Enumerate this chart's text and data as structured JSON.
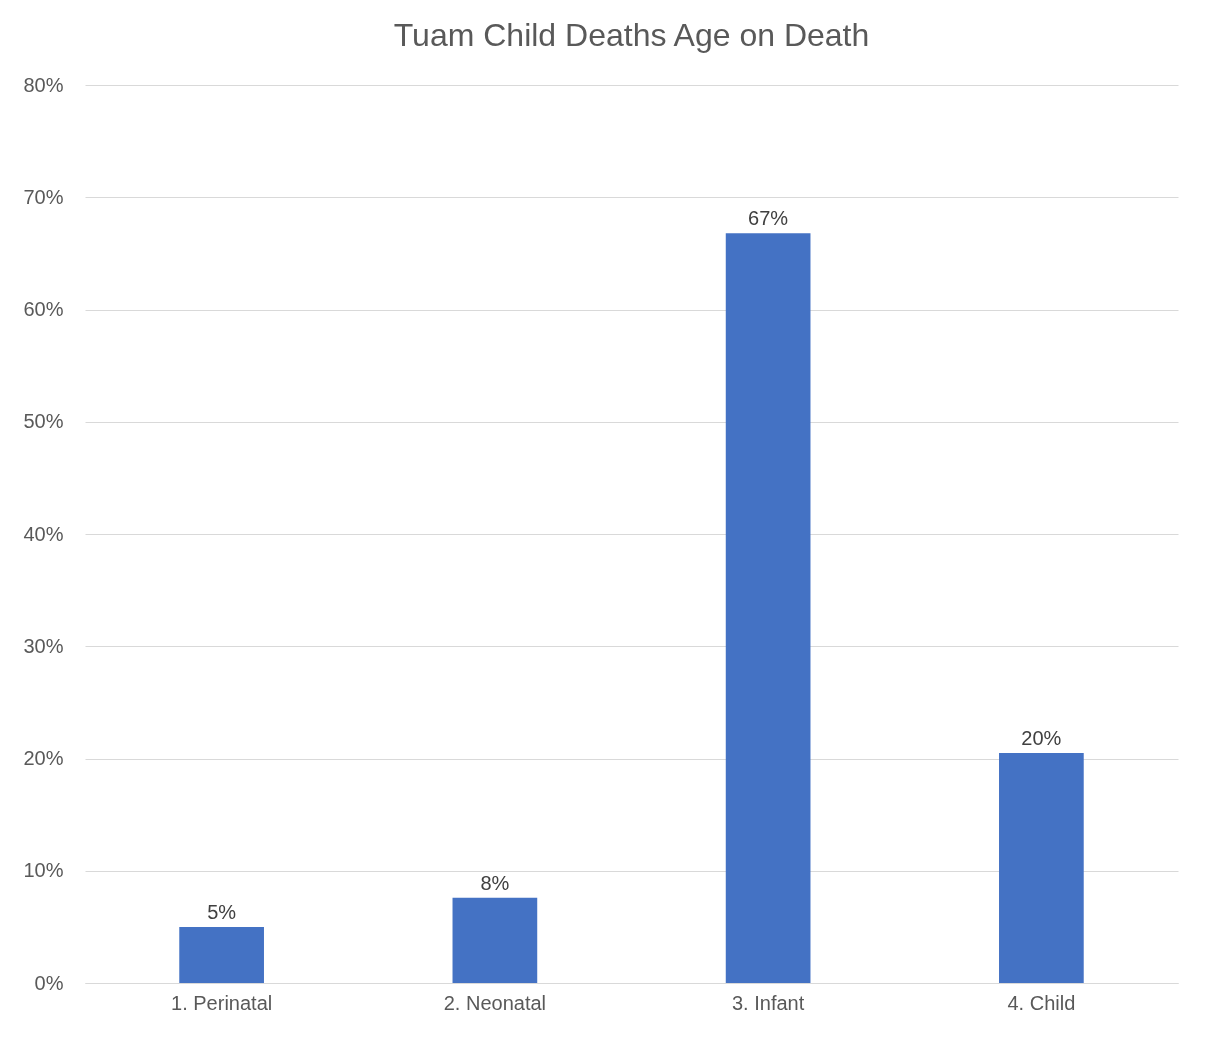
{
  "chart_data": {
    "type": "bar",
    "title": "Tuam Child Deaths Age on Death",
    "categories": [
      "1. Perinatal",
      "2. Neonatal",
      "3. Infant",
      "4. Child"
    ],
    "values": [
      5,
      7.6,
      66.8,
      20.5
    ],
    "value_labels": [
      "5%",
      "8%",
      "67%",
      "20%"
    ],
    "color": "#4472c4",
    "ylim": [
      0,
      80
    ],
    "yticks": [
      {
        "value": 0,
        "label": "0%"
      },
      {
        "value": 10,
        "label": "10%"
      },
      {
        "value": 20,
        "label": "20%"
      },
      {
        "value": 30,
        "label": "30%"
      },
      {
        "value": 40,
        "label": "40%"
      },
      {
        "value": 50,
        "label": "50%"
      },
      {
        "value": 60,
        "label": "60%"
      },
      {
        "value": 70,
        "label": "70%"
      },
      {
        "value": 80,
        "label": "80%"
      }
    ],
    "grid": "y"
  }
}
